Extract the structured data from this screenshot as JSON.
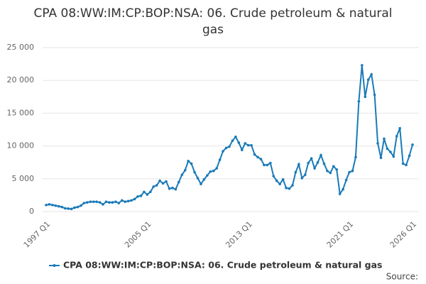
{
  "chart_data": {
    "type": "line",
    "title": "CPA 08:WW:IM:CP:BOP:NSA: 06. Crude petroleum & natural gas",
    "categories": [
      "1997 Q1",
      null,
      null,
      null,
      null,
      null,
      null,
      null,
      null,
      null,
      null,
      null,
      null,
      null,
      null,
      null,
      null,
      null,
      null,
      null,
      null,
      null,
      null,
      null,
      null,
      null,
      null,
      null,
      null,
      null,
      null,
      null,
      "2005 Q1",
      null,
      null,
      null,
      null,
      null,
      null,
      null,
      null,
      null,
      null,
      null,
      null,
      null,
      null,
      null,
      null,
      null,
      null,
      null,
      null,
      null,
      null,
      null,
      null,
      null,
      null,
      null,
      null,
      null,
      null,
      null,
      "2013 Q1",
      null,
      null,
      null,
      null,
      null,
      null,
      null,
      null,
      null,
      null,
      null,
      null,
      null,
      null,
      null,
      null,
      null,
      null,
      null,
      null,
      null,
      null,
      null,
      null,
      null,
      null,
      null,
      null,
      null,
      null,
      null,
      "2021 Q1",
      null,
      null,
      null,
      null,
      null,
      null,
      null,
      null,
      null,
      null,
      null,
      null,
      null,
      null,
      null,
      null,
      null,
      null,
      null,
      "2026 Q1"
    ],
    "series": [
      {
        "name": "CPA 08:WW:IM:CP:BOP:NSA: 06. Crude petroleum & natural gas",
        "color": "#1a7ab8",
        "values": [
          1000,
          1100,
          1000,
          900,
          800,
          700,
          500,
          450,
          400,
          600,
          700,
          900,
          1300,
          1400,
          1500,
          1500,
          1500,
          1400,
          1100,
          1500,
          1400,
          1400,
          1500,
          1300,
          1700,
          1500,
          1600,
          1700,
          1900,
          2300,
          2400,
          3000,
          2600,
          3000,
          3800,
          4000,
          4700,
          4300,
          4600,
          3500,
          3600,
          3400,
          4500,
          5600,
          6300,
          7700,
          7300,
          6000,
          5100,
          4200,
          4900,
          5500,
          6100,
          6200,
          6600,
          7900,
          9200,
          9700,
          9900,
          10800,
          11400,
          10500,
          9400,
          10400,
          10100,
          10100,
          8700,
          8300,
          8000,
          7100,
          7100,
          7400,
          5400,
          4700,
          4200,
          4900,
          3600,
          3500,
          4000,
          6000,
          7200,
          5100,
          5600,
          7400,
          8100,
          6600,
          7500,
          8600,
          7300,
          6200,
          5900,
          6900,
          6400,
          2700,
          3400,
          4800,
          6000,
          6200,
          8300,
          16800,
          22300,
          17500,
          20100,
          20900,
          17800,
          10400,
          8200,
          11100,
          9600,
          9100,
          8400,
          11500,
          12700,
          7300,
          7100,
          8500,
          10200
        ]
      }
    ],
    "ylim": [
      0,
      25000
    ],
    "yticks": [
      0,
      {
        "value": 5000,
        "label": "5 000"
      },
      {
        "value": 10000,
        "label": "10 000"
      },
      {
        "value": 15000,
        "label": "15 000"
      },
      {
        "value": 20000,
        "label": "20 000"
      },
      {
        "value": 25000,
        "label": "25 000"
      }
    ],
    "grid": true,
    "source": "Source:"
  }
}
